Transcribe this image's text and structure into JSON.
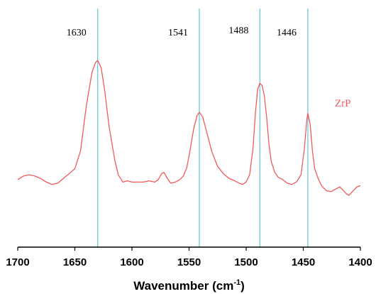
{
  "chart_data": {
    "type": "line",
    "title": "",
    "xlabel": "Wavenumber (cm",
    "xlabel_superscript": "-1",
    "xlabel_suffix": ")",
    "ylabel": "",
    "xlim": [
      1700,
      1400
    ],
    "x_reversed": true,
    "x_ticks": [
      1700,
      1650,
      1600,
      1550,
      1500,
      1450,
      1400
    ],
    "grid": false,
    "y_axis_visible": false,
    "reference_lines": [
      {
        "x": 1630,
        "label": "1630"
      },
      {
        "x": 1541,
        "label": "1541"
      },
      {
        "x": 1488,
        "label": "1488"
      },
      {
        "x": 1446,
        "label": "1446"
      }
    ],
    "reference_line_color": "#6fc8dc",
    "series": [
      {
        "name": "ZrP",
        "color": "#f05a5a",
        "x": [
          1700,
          1695,
          1690,
          1685,
          1680,
          1675,
          1670,
          1665,
          1660,
          1655,
          1650,
          1645,
          1640,
          1635,
          1632,
          1630,
          1627,
          1624,
          1620,
          1615,
          1612,
          1608,
          1604,
          1600,
          1595,
          1590,
          1585,
          1580,
          1577,
          1574,
          1572,
          1569,
          1566,
          1562,
          1558,
          1555,
          1552,
          1549,
          1546,
          1543,
          1541,
          1538,
          1535,
          1530,
          1525,
          1520,
          1515,
          1510,
          1506,
          1503,
          1500,
          1497,
          1494,
          1492,
          1490,
          1488,
          1486,
          1484,
          1482,
          1480,
          1478,
          1475,
          1472,
          1468,
          1464,
          1460,
          1456,
          1452,
          1449,
          1447,
          1446,
          1444,
          1442,
          1440,
          1437,
          1434,
          1430,
          1426,
          1422,
          1418,
          1415,
          1412,
          1410,
          1406,
          1403,
          1400
        ],
        "y": [
          0.01,
          0.04,
          0.05,
          0.04,
          0.02,
          -0.01,
          -0.03,
          -0.02,
          0.02,
          0.06,
          0.1,
          0.25,
          0.62,
          0.9,
          0.98,
          1.0,
          0.94,
          0.76,
          0.45,
          0.17,
          0.05,
          -0.01,
          0.0,
          -0.01,
          -0.01,
          -0.01,
          0.0,
          -0.01,
          0.01,
          0.06,
          0.07,
          0.02,
          -0.02,
          -0.01,
          0.01,
          0.04,
          0.11,
          0.26,
          0.43,
          0.54,
          0.57,
          0.53,
          0.42,
          0.24,
          0.12,
          0.06,
          0.02,
          0.0,
          -0.02,
          -0.03,
          -0.01,
          0.05,
          0.27,
          0.55,
          0.76,
          0.81,
          0.79,
          0.7,
          0.52,
          0.3,
          0.16,
          0.07,
          0.03,
          0.01,
          -0.02,
          -0.03,
          -0.01,
          0.05,
          0.27,
          0.5,
          0.56,
          0.47,
          0.25,
          0.1,
          0.02,
          -0.04,
          -0.08,
          -0.09,
          -0.07,
          -0.05,
          -0.08,
          -0.11,
          -0.12,
          -0.08,
          -0.05,
          -0.04
        ]
      }
    ]
  }
}
